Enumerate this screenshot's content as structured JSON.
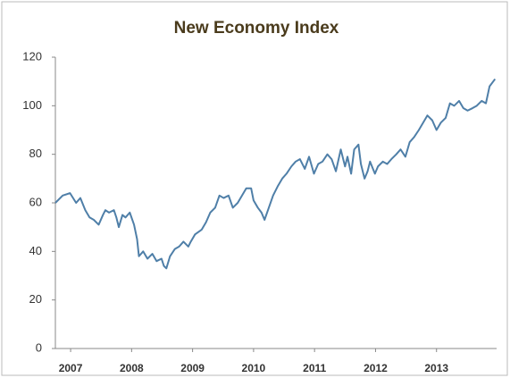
{
  "chart_data": {
    "type": "line",
    "title": "New Economy Index",
    "x": [
      2006.75,
      2006.87,
      2006.99,
      2007.09,
      2007.16,
      2007.24,
      2007.31,
      2007.38,
      2007.46,
      2007.53,
      2007.57,
      2007.63,
      2007.71,
      2007.75,
      2007.79,
      2007.85,
      2007.9,
      2007.97,
      2008.04,
      2008.09,
      2008.12,
      2008.19,
      2008.26,
      2008.34,
      2008.41,
      2008.49,
      2008.53,
      2008.57,
      2008.63,
      2008.71,
      2008.78,
      2008.85,
      2008.93,
      2008.97,
      2009.04,
      2009.15,
      2009.22,
      2009.29,
      2009.37,
      2009.44,
      2009.51,
      2009.59,
      2009.66,
      2009.74,
      2009.81,
      2009.88,
      2009.96,
      2010.0,
      2010.07,
      2010.13,
      2010.18,
      2010.25,
      2010.32,
      2010.4,
      2010.47,
      2010.54,
      2010.62,
      2010.69,
      2010.76,
      2010.84,
      2010.91,
      2010.99,
      2011.06,
      2011.13,
      2011.21,
      2011.28,
      2011.35,
      2011.43,
      2011.5,
      2011.54,
      2011.6,
      2011.65,
      2011.72,
      2011.76,
      2011.82,
      2011.87,
      2011.91,
      2011.99,
      2012.04,
      2012.12,
      2012.19,
      2012.26,
      2012.34,
      2012.41,
      2012.49,
      2012.56,
      2012.63,
      2012.71,
      2012.78,
      2012.85,
      2012.93,
      2013.0,
      2013.07,
      2013.15,
      2013.22,
      2013.29,
      2013.37,
      2013.44,
      2013.51,
      2013.59,
      2013.66,
      2013.74,
      2013.81,
      2013.87,
      2013.96
    ],
    "series": [
      {
        "name": "New Economy Index",
        "color": "#4f7fa8",
        "values": [
          60,
          63,
          64,
          60,
          62,
          57,
          54,
          53,
          51,
          55,
          57,
          56,
          57,
          54,
          50,
          55,
          54,
          56,
          51,
          45,
          38,
          40,
          37,
          39,
          36,
          37,
          34,
          33,
          38,
          41,
          42,
          44,
          42,
          44,
          47,
          49,
          52,
          56,
          58,
          63,
          62,
          63,
          58,
          60,
          63,
          66,
          66,
          61,
          58,
          56,
          53,
          58,
          63,
          67,
          70,
          72,
          75,
          77,
          78,
          74,
          79,
          72,
          76,
          77,
          80,
          78,
          73,
          82,
          75,
          79,
          72,
          82,
          84,
          76,
          70,
          73,
          77,
          72,
          75,
          77,
          76,
          78,
          80,
          82,
          79,
          85,
          87,
          90,
          93,
          96,
          94,
          90,
          93,
          95,
          101,
          100,
          102,
          99,
          98,
          99,
          100,
          102,
          101,
          108,
          111
        ]
      }
    ],
    "xlim": [
      2006.75,
      2014
    ],
    "xticks": [
      2007,
      2008,
      2009,
      2010,
      2011,
      2012,
      2013
    ],
    "ylim": [
      0,
      120
    ],
    "yticks": [
      0,
      20,
      40,
      60,
      80,
      100,
      120
    ],
    "grid": false
  }
}
